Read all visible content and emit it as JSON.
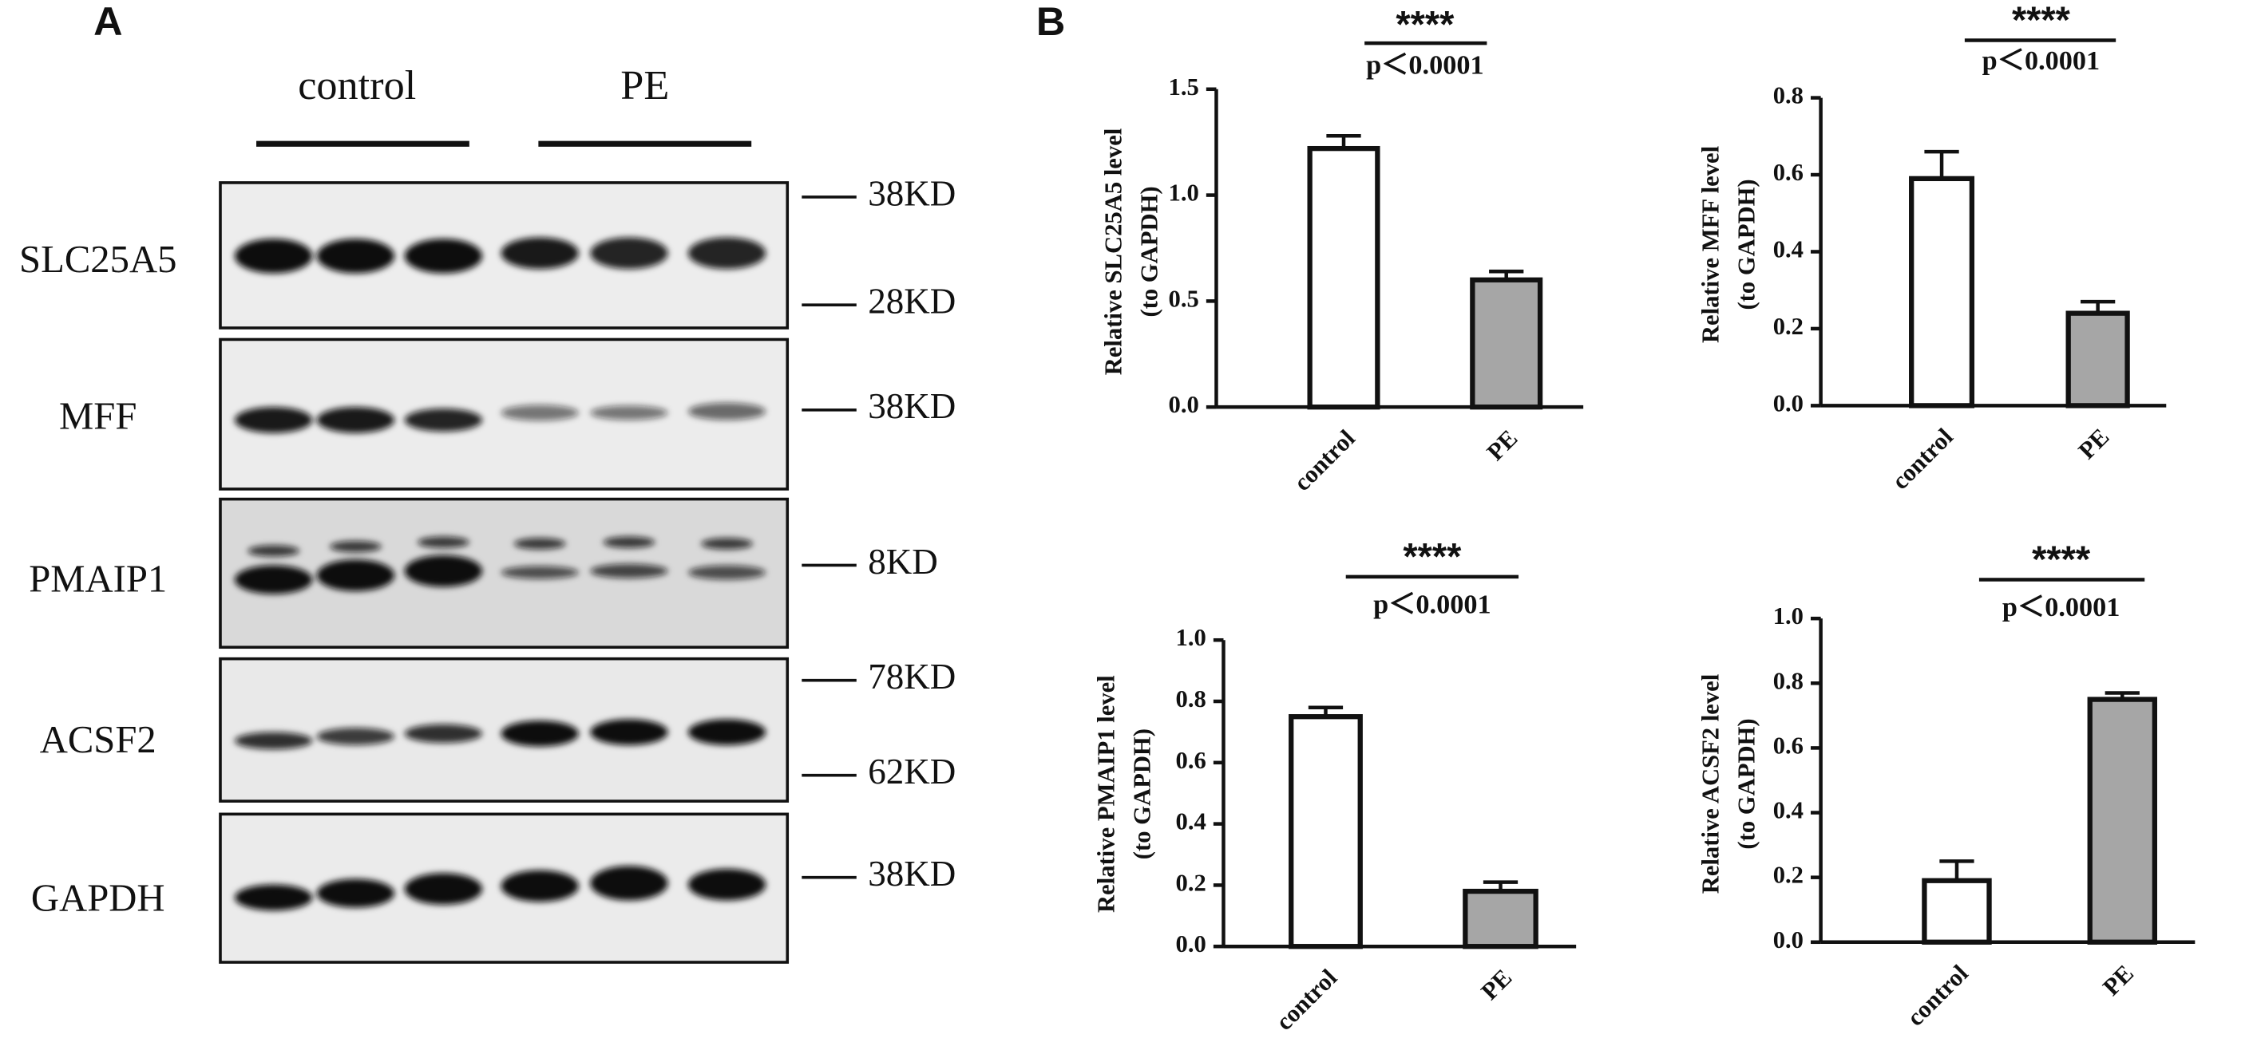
{
  "panel_labels": [
    "A",
    "B"
  ],
  "blot": {
    "groups": [
      "control",
      "PE"
    ],
    "rows": [
      {
        "name": "SLC25A5",
        "markers": [
          "38KD",
          "28KD"
        ]
      },
      {
        "name": "MFF",
        "markers": [
          "38KD"
        ]
      },
      {
        "name": "PMAIP1",
        "markers": [
          "8KD"
        ]
      },
      {
        "name": "ACSF2",
        "markers": [
          "78KD",
          "62KD"
        ]
      },
      {
        "name": "GAPDH",
        "markers": [
          "38KD"
        ]
      }
    ]
  },
  "chart_data": [
    {
      "type": "bar",
      "ylabel": [
        "Relative SLC25A5 level",
        "(to GAPDH)"
      ],
      "significance": "****",
      "p_text": "p＜0.0001",
      "categories": [
        "control",
        "PE"
      ],
      "values": [
        1.22,
        0.6
      ],
      "errors": [
        0.06,
        0.04
      ],
      "colors": [
        "#ffffff",
        "#a6a6a6"
      ],
      "ylim": [
        0,
        1.5
      ],
      "yticks": [
        {
          "value": 0,
          "label": "0.0"
        },
        0.5,
        {
          "value": 1,
          "label": "1.0"
        },
        1.5
      ]
    },
    {
      "type": "bar",
      "ylabel": [
        "Relative MFF level",
        "(to GAPDH)"
      ],
      "significance": "****",
      "p_text": "p＜0.0001",
      "categories": [
        "control",
        "PE"
      ],
      "values": [
        0.59,
        0.24
      ],
      "errors": [
        0.07,
        0.03
      ],
      "colors": [
        "#ffffff",
        "#a6a6a6"
      ],
      "ylim": [
        0,
        0.8
      ],
      "yticks": [
        {
          "value": 0,
          "label": "0.0"
        },
        0.2,
        0.4,
        0.6,
        0.8
      ]
    },
    {
      "type": "bar",
      "ylabel": [
        "Relative PMAIP1 level",
        "(to GAPDH)"
      ],
      "significance": "****",
      "p_text": "p＜0.0001",
      "categories": [
        "control",
        "PE"
      ],
      "values": [
        0.75,
        0.18
      ],
      "errors": [
        0.03,
        0.03
      ],
      "colors": [
        "#ffffff",
        "#a6a6a6"
      ],
      "ylim": [
        0,
        1
      ],
      "yticks": [
        {
          "value": 0,
          "label": "0.0"
        },
        0.2,
        0.4,
        0.6,
        0.8,
        {
          "value": 1,
          "label": "1.0"
        }
      ]
    },
    {
      "type": "bar",
      "ylabel": [
        "Relative ACSF2 level",
        "(to GAPDH)"
      ],
      "significance": "****",
      "p_text": "p＜0.0001",
      "categories": [
        "control",
        "PE"
      ],
      "values": [
        0.19,
        0.75
      ],
      "errors": [
        0.06,
        0.02
      ],
      "colors": [
        "#ffffff",
        "#a6a6a6"
      ],
      "ylim": [
        0,
        1
      ],
      "yticks": [
        {
          "value": 0,
          "label": "0.0"
        },
        0.2,
        0.4,
        0.6,
        0.8,
        {
          "value": 1,
          "label": "1.0"
        }
      ]
    }
  ]
}
